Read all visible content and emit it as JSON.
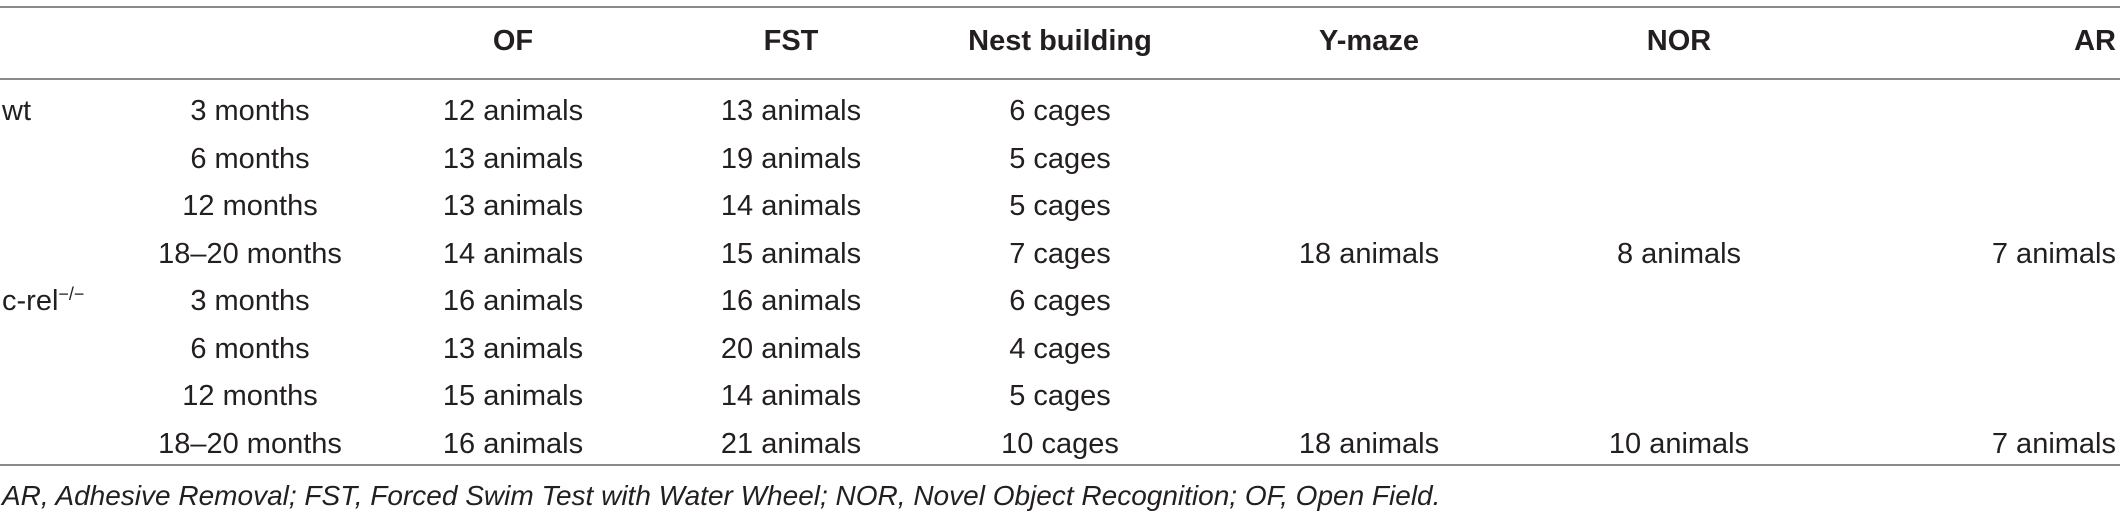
{
  "table": {
    "headers": [
      "",
      "",
      "OF",
      "FST",
      "Nest building",
      "Y-maze",
      "NOR",
      "AR"
    ],
    "groups": [
      {
        "label": "wt",
        "label_sup": "",
        "rows": [
          {
            "age": "3 months",
            "of": "12 animals",
            "fst": "13 animals",
            "nest": "6 cages",
            "ymaze": "",
            "nor": "",
            "ar": ""
          },
          {
            "age": "6 months",
            "of": "13 animals",
            "fst": "19 animals",
            "nest": "5 cages",
            "ymaze": "",
            "nor": "",
            "ar": ""
          },
          {
            "age": "12 months",
            "of": "13 animals",
            "fst": "14 animals",
            "nest": "5 cages",
            "ymaze": "",
            "nor": "",
            "ar": ""
          },
          {
            "age": "18–20 months",
            "of": "14 animals",
            "fst": "15 animals",
            "nest": "7 cages",
            "ymaze": "18 animals",
            "nor": "8 animals",
            "ar": "7 animals"
          }
        ]
      },
      {
        "label": "c-rel",
        "label_sup": "−/−",
        "rows": [
          {
            "age": "3 months",
            "of": "16 animals",
            "fst": "16 animals",
            "nest": "6 cages",
            "ymaze": "",
            "nor": "",
            "ar": ""
          },
          {
            "age": "6 months",
            "of": "13 animals",
            "fst": "20 animals",
            "nest": "4 cages",
            "ymaze": "",
            "nor": "",
            "ar": ""
          },
          {
            "age": "12 months",
            "of": "15 animals",
            "fst": "14 animals",
            "nest": "5 cages",
            "ymaze": "",
            "nor": "",
            "ar": ""
          },
          {
            "age": "18–20 months",
            "of": "16 animals",
            "fst": "21 animals",
            "nest": "10 cages",
            "ymaze": "18 animals",
            "nor": "10 animals",
            "ar": "7 animals"
          }
        ]
      }
    ]
  },
  "footnote": "AR, Adhesive Removal; FST, Forced Swim Test with Water Wheel; NOR, Novel Object Recognition; OF, Open Field."
}
